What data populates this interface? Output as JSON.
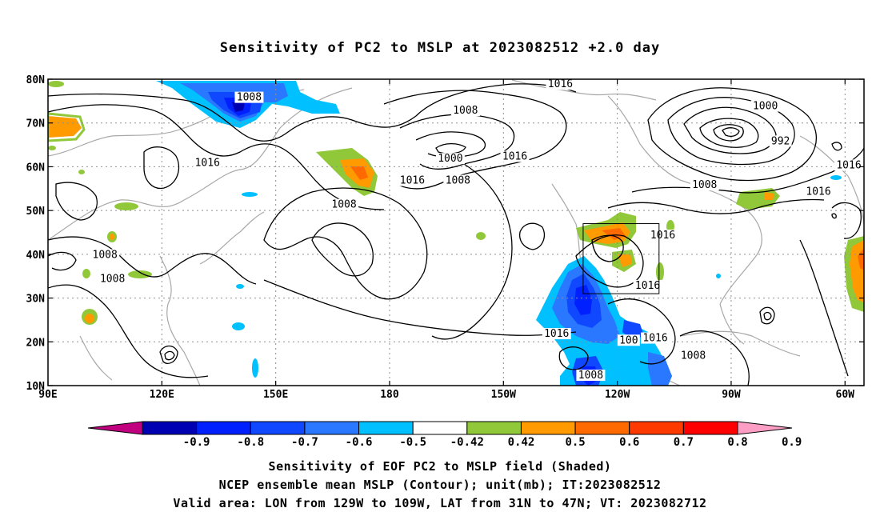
{
  "title": "Sensitivity of PC2 to MSLP at 2023082512 +2.0 day",
  "footer": {
    "line1": "Sensitivity of EOF PC2 to MSLP field (Shaded)",
    "line2": "NCEP ensemble mean MSLP (Contour); unit(mb); IT:2023082512",
    "line3": "Valid area: LON from 129W to 109W, LAT from 31N to 47N; VT: 2023082712"
  },
  "map": {
    "lon_range": [
      90,
      305
    ],
    "lat_range": [
      10,
      80
    ],
    "xticks": [
      {
        "lon": 90,
        "label": "90E"
      },
      {
        "lon": 120,
        "label": "120E"
      },
      {
        "lon": 150,
        "label": "150E"
      },
      {
        "lon": 180,
        "label": "180"
      },
      {
        "lon": 210,
        "label": "150W"
      },
      {
        "lon": 240,
        "label": "120W"
      },
      {
        "lon": 270,
        "label": "90W"
      },
      {
        "lon": 300,
        "label": "60W"
      }
    ],
    "yticks": [
      {
        "lat": 10,
        "label": "10N"
      },
      {
        "lat": 20,
        "label": "20N"
      },
      {
        "lat": 30,
        "label": "30N"
      },
      {
        "lat": 40,
        "label": "40N"
      },
      {
        "lat": 50,
        "label": "50N"
      },
      {
        "lat": 60,
        "label": "60N"
      },
      {
        "lat": 70,
        "label": "70N"
      },
      {
        "lat": 80,
        "label": "80N"
      }
    ],
    "valid_area": {
      "lon_min": 231,
      "lon_max": 251,
      "lat_min": 31,
      "lat_max": 47
    },
    "contour_labels": [
      {
        "text": "1016",
        "lon": 225,
        "lat": 78.5
      },
      {
        "text": "1008",
        "lon": 143,
        "lat": 75.5
      },
      {
        "text": "1008",
        "lon": 200,
        "lat": 72.5
      },
      {
        "text": "1000",
        "lon": 279,
        "lat": 73.5
      },
      {
        "text": "992",
        "lon": 283,
        "lat": 65.5
      },
      {
        "text": "1016",
        "lon": 132,
        "lat": 60.5
      },
      {
        "text": "1000",
        "lon": 196,
        "lat": 61.5
      },
      {
        "text": "1016",
        "lon": 213,
        "lat": 62
      },
      {
        "text": "1008",
        "lon": 198,
        "lat": 56.5
      },
      {
        "text": "1016",
        "lon": 186,
        "lat": 56.5
      },
      {
        "text": "1008",
        "lon": 168,
        "lat": 51
      },
      {
        "text": "1016",
        "lon": 301,
        "lat": 60
      },
      {
        "text": "1008",
        "lon": 263,
        "lat": 55.5
      },
      {
        "text": "1016",
        "lon": 293,
        "lat": 54
      },
      {
        "text": "1016",
        "lon": 252,
        "lat": 44
      },
      {
        "text": "1008",
        "lon": 105,
        "lat": 39.5
      },
      {
        "text": "1008",
        "lon": 107,
        "lat": 34
      },
      {
        "text": "1016",
        "lon": 248,
        "lat": 32.5
      },
      {
        "text": "1016",
        "lon": 224,
        "lat": 21.5
      },
      {
        "text": "1016",
        "lon": 250,
        "lat": 20.5
      },
      {
        "text": "100",
        "lon": 243,
        "lat": 20
      },
      {
        "text": "1008",
        "lon": 260,
        "lat": 16.5
      },
      {
        "text": "1008",
        "lon": 233,
        "lat": 12
      }
    ]
  },
  "colorbar": {
    "colors": [
      "#c0007e",
      "#0000b3",
      "#0020ff",
      "#1048ff",
      "#2a78ff",
      "#00c0ff",
      "#ffffff",
      "#90c83a",
      "#ff9a00",
      "#ff6a00",
      "#ff3a00",
      "#ff0000",
      "#ff9ec4"
    ],
    "labels": [
      "-0.9",
      "-0.8",
      "-0.7",
      "-0.6",
      "-0.5",
      "-0.42",
      "0.42",
      "0.5",
      "0.6",
      "0.7",
      "0.8",
      "0.9"
    ]
  },
  "shading": [
    {
      "level": -0.9,
      "color": "#0000b3"
    },
    {
      "level": -0.7,
      "color": "#1048ff"
    },
    {
      "level": -0.5,
      "color": "#2a78ff"
    },
    {
      "level": -0.42,
      "color": "#00c0ff"
    },
    {
      "level": 0.42,
      "color": "#90c83a"
    },
    {
      "level": 0.5,
      "color": "#ff9a00"
    },
    {
      "level": 0.6,
      "color": "#ff6a00"
    }
  ]
}
